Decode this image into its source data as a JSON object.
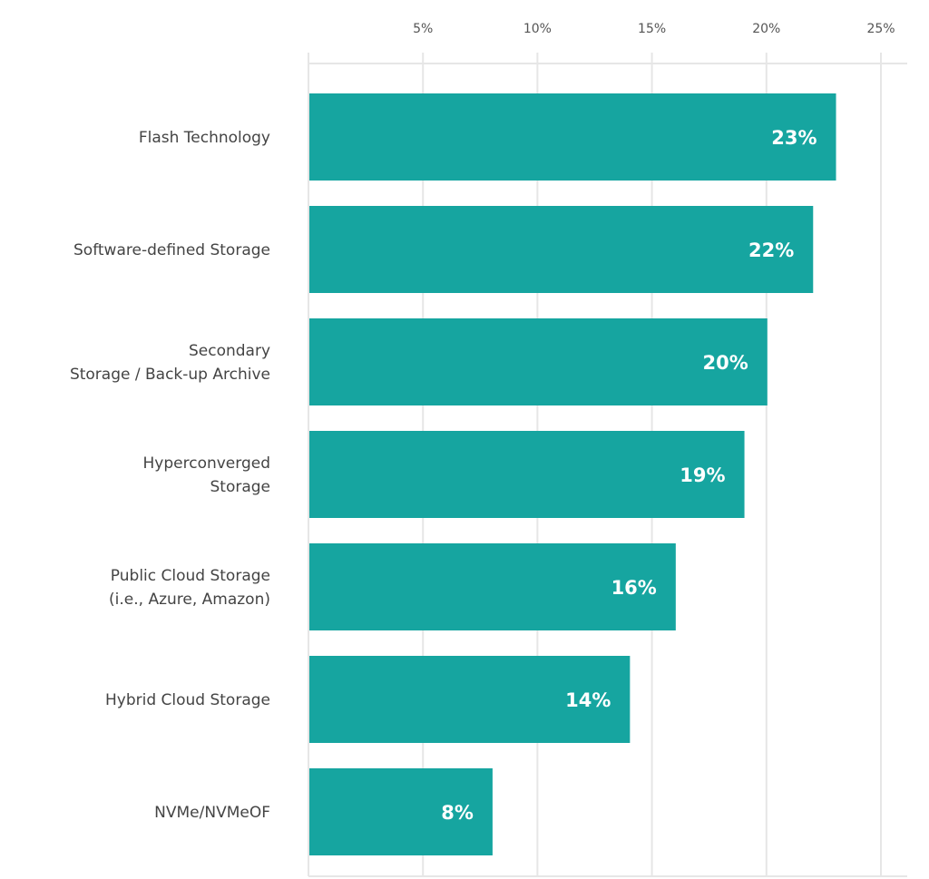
{
  "chart_data": {
    "type": "bar",
    "orientation": "horizontal",
    "title": "",
    "xlabel": "",
    "ylabel": "",
    "xlim": [
      0,
      25
    ],
    "x_ticks": [
      5,
      10,
      15,
      20,
      25
    ],
    "x_tick_labels": [
      "5%",
      "10%",
      "15%",
      "20%",
      "25%"
    ],
    "x_axis_position": "top",
    "grid": true,
    "categories": [
      [
        "Flash Technology"
      ],
      [
        "Software-defined Storage"
      ],
      [
        "Secondary",
        "Storage / Back-up Archive"
      ],
      [
        "Hyperconverged",
        "Storage"
      ],
      [
        "Public Cloud Storage",
        "(i.e., Azure, Amazon)"
      ],
      [
        "Hybrid Cloud Storage"
      ],
      [
        "NVMe/NVMeOF"
      ]
    ],
    "values": [
      23,
      22,
      20,
      19,
      16,
      14,
      8
    ],
    "data_labels": [
      "23%",
      "22%",
      "20%",
      "19%",
      "16%",
      "14%",
      "8%"
    ],
    "colors": {
      "bar": "#16a5a0",
      "grid": "#e6e6e6",
      "label": "#444444"
    }
  }
}
